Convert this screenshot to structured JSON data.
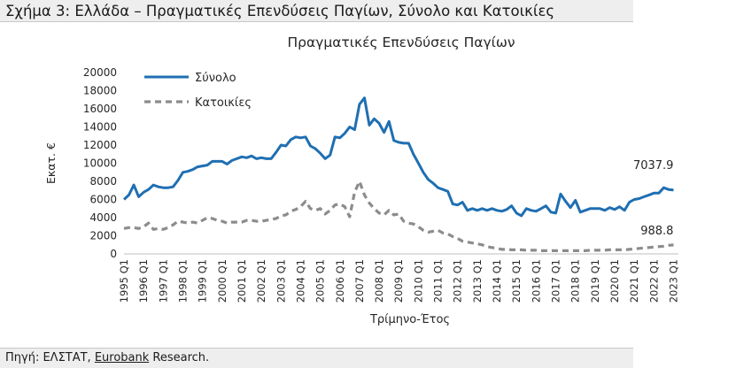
{
  "figure": {
    "title": "Σχήμα 3: Ελλάδα – Πραγματικές Επενδύσεις Παγίων, Σύνολο και Κατοικίες",
    "source_prefix": "Πηγή: ΕΛΣΤΑΤ, ",
    "source_link": "Eurobank",
    "source_suffix": " Research."
  },
  "colors": {
    "total": "#1f6fb2",
    "housing": "#8c8c8c",
    "axis": "#bfbfbf"
  },
  "chart_data": {
    "type": "line",
    "title": "Πραγματικές Επενδύσεις Παγίων",
    "xlabel": "Τρίμηνο-Έτος",
    "ylabel": "Εκατ. €",
    "ylim": [
      0,
      20000
    ],
    "yticks": [
      0,
      2000,
      4000,
      6000,
      8000,
      10000,
      12000,
      14000,
      16000,
      18000,
      20000
    ],
    "xlim": [
      1995.0,
      2023.25
    ],
    "xtick_labels": [
      "1995 Q1",
      "1996 Q1",
      "1997 Q1",
      "1998 Q1",
      "1999 Q1",
      "2000 Q1",
      "2001 Q1",
      "2002 Q1",
      "2003 Q1",
      "2004 Q1",
      "2005 Q1",
      "2006 Q1",
      "2007 Q1",
      "2008 Q1",
      "2009 Q1",
      "2010 Q1",
      "2011 Q1",
      "2012 Q1",
      "2013 Q1",
      "2014 Q1",
      "2015 Q1",
      "2016 Q1",
      "2017 Q1",
      "2018 Q1",
      "2019 Q1",
      "2020 Q1",
      "2021 Q1",
      "2022 Q1",
      "2023 Q1"
    ],
    "legend": "top-left",
    "grid": false,
    "series": [
      {
        "name": "Σύνολο",
        "style": "solid",
        "points": [
          [
            1995.0,
            6000
          ],
          [
            1995.25,
            6500
          ],
          [
            1995.5,
            7600
          ],
          [
            1995.75,
            6300
          ],
          [
            1996.0,
            6800
          ],
          [
            1996.25,
            7100
          ],
          [
            1996.5,
            7600
          ],
          [
            1996.75,
            7400
          ],
          [
            1997.0,
            7300
          ],
          [
            1997.25,
            7300
          ],
          [
            1997.5,
            7400
          ],
          [
            1997.75,
            8100
          ],
          [
            1998.0,
            9000
          ],
          [
            1998.25,
            9100
          ],
          [
            1998.5,
            9300
          ],
          [
            1998.75,
            9600
          ],
          [
            1999.0,
            9700
          ],
          [
            1999.25,
            9800
          ],
          [
            1999.5,
            10200
          ],
          [
            1999.75,
            10200
          ],
          [
            2000.0,
            10200
          ],
          [
            2000.25,
            9900
          ],
          [
            2000.5,
            10300
          ],
          [
            2000.75,
            10500
          ],
          [
            2001.0,
            10700
          ],
          [
            2001.25,
            10600
          ],
          [
            2001.5,
            10800
          ],
          [
            2001.75,
            10500
          ],
          [
            2002.0,
            10600
          ],
          [
            2002.25,
            10500
          ],
          [
            2002.5,
            10500
          ],
          [
            2002.75,
            11200
          ],
          [
            2003.0,
            12000
          ],
          [
            2003.25,
            11900
          ],
          [
            2003.5,
            12600
          ],
          [
            2003.75,
            12900
          ],
          [
            2004.0,
            12800
          ],
          [
            2004.25,
            12900
          ],
          [
            2004.5,
            11900
          ],
          [
            2004.75,
            11600
          ],
          [
            2005.0,
            11100
          ],
          [
            2005.25,
            10500
          ],
          [
            2005.5,
            10900
          ],
          [
            2005.75,
            12900
          ],
          [
            2006.0,
            12800
          ],
          [
            2006.25,
            13300
          ],
          [
            2006.5,
            14000
          ],
          [
            2006.75,
            13700
          ],
          [
            2007.0,
            16500
          ],
          [
            2007.25,
            17200
          ],
          [
            2007.5,
            14200
          ],
          [
            2007.75,
            14900
          ],
          [
            2008.0,
            14400
          ],
          [
            2008.25,
            13400
          ],
          [
            2008.5,
            14600
          ],
          [
            2008.75,
            12500
          ],
          [
            2009.0,
            12300
          ],
          [
            2009.25,
            12200
          ],
          [
            2009.5,
            12200
          ],
          [
            2009.75,
            11000
          ],
          [
            2010.0,
            10000
          ],
          [
            2010.25,
            9000
          ],
          [
            2010.5,
            8200
          ],
          [
            2010.75,
            7800
          ],
          [
            2011.0,
            7300
          ],
          [
            2011.25,
            7100
          ],
          [
            2011.5,
            6900
          ],
          [
            2011.75,
            5500
          ],
          [
            2012.0,
            5400
          ],
          [
            2012.25,
            5700
          ],
          [
            2012.5,
            4800
          ],
          [
            2012.75,
            5000
          ],
          [
            2013.0,
            4800
          ],
          [
            2013.25,
            5000
          ],
          [
            2013.5,
            4800
          ],
          [
            2013.75,
            5000
          ],
          [
            2014.0,
            4800
          ],
          [
            2014.25,
            4700
          ],
          [
            2014.5,
            4900
          ],
          [
            2014.75,
            5300
          ],
          [
            2015.0,
            4500
          ],
          [
            2015.25,
            4200
          ],
          [
            2015.5,
            5000
          ],
          [
            2015.75,
            4800
          ],
          [
            2016.0,
            4700
          ],
          [
            2016.25,
            5000
          ],
          [
            2016.5,
            5300
          ],
          [
            2016.75,
            4600
          ],
          [
            2017.0,
            4500
          ],
          [
            2017.25,
            6600
          ],
          [
            2017.5,
            5800
          ],
          [
            2017.75,
            5100
          ],
          [
            2018.0,
            5900
          ],
          [
            2018.25,
            4600
          ],
          [
            2018.5,
            4800
          ],
          [
            2018.75,
            5000
          ],
          [
            2019.0,
            5000
          ],
          [
            2019.25,
            5000
          ],
          [
            2019.5,
            4800
          ],
          [
            2019.75,
            5100
          ],
          [
            2020.0,
            4900
          ],
          [
            2020.25,
            5200
          ],
          [
            2020.5,
            4800
          ],
          [
            2020.75,
            5700
          ],
          [
            2021.0,
            6000
          ],
          [
            2021.25,
            6100
          ],
          [
            2021.5,
            6300
          ],
          [
            2021.75,
            6500
          ],
          [
            2022.0,
            6700
          ],
          [
            2022.25,
            6700
          ],
          [
            2022.5,
            7300
          ],
          [
            2022.75,
            7100
          ],
          [
            2023.0,
            7037.9
          ]
        ],
        "end_label": "7037.9"
      },
      {
        "name": "Κατοικίες",
        "style": "dashed",
        "points": [
          [
            1995.0,
            2800
          ],
          [
            1995.25,
            2900
          ],
          [
            1995.5,
            2900
          ],
          [
            1995.75,
            2800
          ],
          [
            1996.0,
            3000
          ],
          [
            1996.25,
            3400
          ],
          [
            1996.5,
            2700
          ],
          [
            1996.75,
            2800
          ],
          [
            1997.0,
            2700
          ],
          [
            1997.25,
            2900
          ],
          [
            1997.5,
            3200
          ],
          [
            1997.75,
            3600
          ],
          [
            1998.0,
            3500
          ],
          [
            1998.25,
            3400
          ],
          [
            1998.5,
            3500
          ],
          [
            1998.75,
            3400
          ],
          [
            1999.0,
            3700
          ],
          [
            1999.25,
            4000
          ],
          [
            1999.5,
            3900
          ],
          [
            1999.75,
            3700
          ],
          [
            2000.0,
            3600
          ],
          [
            2000.25,
            3400
          ],
          [
            2000.5,
            3500
          ],
          [
            2000.75,
            3500
          ],
          [
            2001.0,
            3500
          ],
          [
            2001.25,
            3700
          ],
          [
            2001.5,
            3700
          ],
          [
            2001.75,
            3600
          ],
          [
            2002.0,
            3600
          ],
          [
            2002.25,
            3700
          ],
          [
            2002.5,
            3800
          ],
          [
            2002.75,
            3900
          ],
          [
            2003.0,
            4200
          ],
          [
            2003.25,
            4300
          ],
          [
            2003.5,
            4700
          ],
          [
            2003.75,
            4900
          ],
          [
            2004.0,
            5200
          ],
          [
            2004.25,
            5800
          ],
          [
            2004.5,
            5000
          ],
          [
            2004.75,
            4800
          ],
          [
            2005.0,
            5000
          ],
          [
            2005.25,
            4400
          ],
          [
            2005.5,
            4800
          ],
          [
            2005.75,
            5400
          ],
          [
            2006.0,
            5500
          ],
          [
            2006.25,
            5200
          ],
          [
            2006.5,
            4100
          ],
          [
            2006.75,
            6800
          ],
          [
            2007.0,
            8000
          ],
          [
            2007.25,
            6500
          ],
          [
            2007.5,
            5600
          ],
          [
            2007.75,
            5000
          ],
          [
            2008.0,
            4500
          ],
          [
            2008.25,
            4300
          ],
          [
            2008.5,
            4800
          ],
          [
            2008.75,
            4300
          ],
          [
            2009.0,
            4400
          ],
          [
            2009.25,
            3600
          ],
          [
            2009.5,
            3400
          ],
          [
            2009.75,
            3300
          ],
          [
            2010.0,
            3000
          ],
          [
            2010.25,
            2600
          ],
          [
            2010.5,
            2400
          ],
          [
            2010.75,
            2500
          ],
          [
            2011.0,
            2600
          ],
          [
            2011.25,
            2300
          ],
          [
            2011.5,
            2200
          ],
          [
            2011.75,
            1900
          ],
          [
            2012.0,
            1700
          ],
          [
            2012.25,
            1400
          ],
          [
            2012.5,
            1300
          ],
          [
            2012.75,
            1200
          ],
          [
            2013.0,
            1100
          ],
          [
            2013.25,
            1000
          ],
          [
            2013.5,
            800
          ],
          [
            2013.75,
            700
          ],
          [
            2014.0,
            600
          ],
          [
            2014.25,
            500
          ],
          [
            2014.5,
            500
          ],
          [
            2014.75,
            450
          ],
          [
            2015.0,
            450
          ],
          [
            2015.25,
            450
          ],
          [
            2015.5,
            400
          ],
          [
            2015.75,
            400
          ],
          [
            2016.0,
            400
          ],
          [
            2016.25,
            350
          ],
          [
            2016.5,
            350
          ],
          [
            2016.75,
            350
          ],
          [
            2017.0,
            350
          ],
          [
            2017.25,
            350
          ],
          [
            2017.5,
            350
          ],
          [
            2017.75,
            350
          ],
          [
            2018.0,
            350
          ],
          [
            2018.25,
            350
          ],
          [
            2018.5,
            350
          ],
          [
            2018.75,
            400
          ],
          [
            2019.0,
            400
          ],
          [
            2019.25,
            400
          ],
          [
            2019.5,
            400
          ],
          [
            2019.75,
            450
          ],
          [
            2020.0,
            450
          ],
          [
            2020.25,
            450
          ],
          [
            2020.5,
            450
          ],
          [
            2020.75,
            500
          ],
          [
            2021.0,
            550
          ],
          [
            2021.25,
            600
          ],
          [
            2021.5,
            650
          ],
          [
            2021.75,
            700
          ],
          [
            2022.0,
            750
          ],
          [
            2022.25,
            800
          ],
          [
            2022.5,
            850
          ],
          [
            2022.75,
            950
          ],
          [
            2023.0,
            988.8
          ]
        ],
        "end_label": "988.8"
      }
    ]
  }
}
